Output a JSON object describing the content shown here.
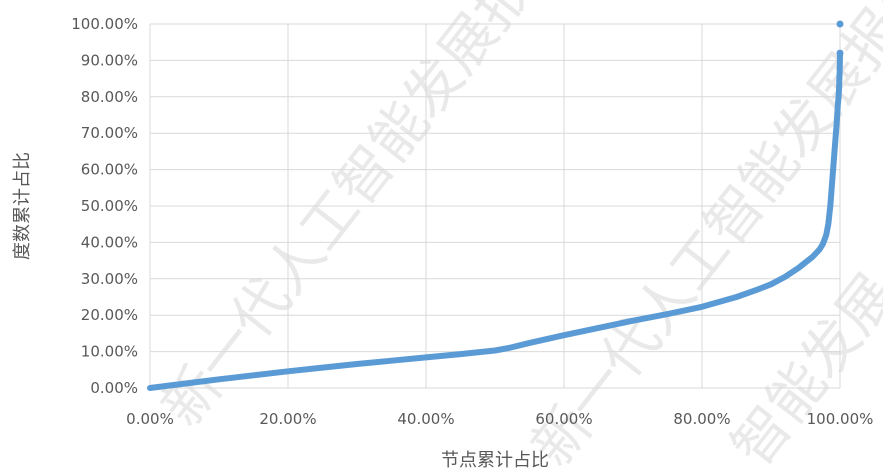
{
  "watermark": {
    "text_a": "新一代人工智能发展报告",
    "text_b": "新一代人工智能发展报告",
    "text_c": "智能发展"
  },
  "chart_data": {
    "type": "scatter",
    "title": "",
    "xlabel": "节点累计占比",
    "ylabel": "度数累计占比",
    "xlim": [
      0,
      100
    ],
    "ylim": [
      0,
      100
    ],
    "x_ticks": [
      "0.00%",
      "20.00%",
      "40.00%",
      "60.00%",
      "80.00%",
      "100.00%"
    ],
    "y_ticks": [
      "0.00%",
      "10.00%",
      "20.00%",
      "30.00%",
      "40.00%",
      "50.00%",
      "60.00%",
      "70.00%",
      "80.00%",
      "90.00%",
      "100.00%"
    ],
    "grid": true,
    "color": "#5b9bd5",
    "series": [
      {
        "x": [
          0,
          5,
          10,
          15,
          20,
          25,
          30,
          35,
          40,
          45,
          50,
          52,
          55,
          60,
          65,
          70,
          75,
          80,
          85,
          88,
          90,
          92,
          94,
          95,
          96,
          97,
          97.5,
          98,
          98.3,
          98.6,
          98.8,
          99,
          99.2,
          99.4,
          99.5,
          99.6,
          99.7,
          99.8,
          99.85,
          99.9,
          99.95,
          100
        ],
        "y": [
          0,
          1.2,
          2.4,
          3.5,
          4.6,
          5.6,
          6.6,
          7.5,
          8.4,
          9.3,
          10.3,
          11,
          12.4,
          14.5,
          16.5,
          18.5,
          20.3,
          22.3,
          25,
          27,
          28.5,
          30.5,
          33,
          34.5,
          36,
          38,
          39.5,
          42,
          45,
          50,
          55,
          60,
          65,
          70,
          72,
          75,
          78,
          80,
          82,
          84.5,
          87,
          92
        ]
      }
    ],
    "outliers": [
      {
        "x": 100,
        "y": 100
      },
      {
        "x": 100,
        "y": 92
      }
    ]
  }
}
